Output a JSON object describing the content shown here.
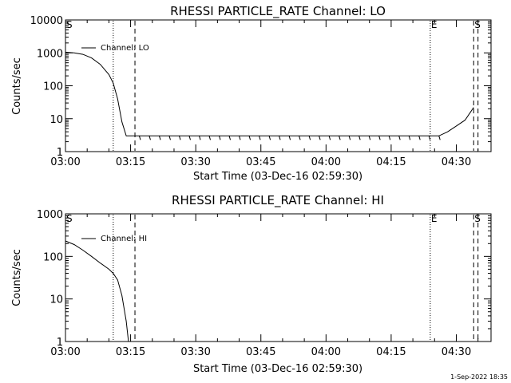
{
  "footer": {
    "timestamp": "1-Sep-2022 18:35"
  },
  "chart_data": [
    {
      "type": "line",
      "title": "RHESSI PARTICLE_RATE Channel: LO",
      "xlabel": "Start Time (03-Dec-16 02:59:30)",
      "ylabel": "Counts/sec",
      "y_scale": "log",
      "xlim": [
        "03:00",
        "04:38"
      ],
      "ylim": [
        1,
        10000
      ],
      "x_ticks": [
        "03:00",
        "03:15",
        "03:30",
        "03:45",
        "04:00",
        "04:15",
        "04:30"
      ],
      "y_ticks": [
        "1",
        "10",
        "100",
        "1000",
        "10000"
      ],
      "legend": {
        "position": "top-left",
        "entries": [
          "Channel: LO"
        ]
      },
      "markers": [
        {
          "label": "S",
          "time": "03:00",
          "style": "text"
        },
        {
          "time": "03:11",
          "style": "dotted"
        },
        {
          "time": "03:16",
          "style": "dashed"
        },
        {
          "label": "E",
          "time": "04:24",
          "style": "dotted"
        },
        {
          "label": "S",
          "time": "04:34",
          "style": "dashed"
        },
        {
          "time": "04:35",
          "style": "dashed"
        }
      ],
      "series": [
        {
          "name": "Channel: LO",
          "points": [
            [
              "03:00",
              1050
            ],
            [
              "03:02",
              1000
            ],
            [
              "03:04",
              900
            ],
            [
              "03:06",
              700
            ],
            [
              "03:08",
              450
            ],
            [
              "03:10",
              220
            ],
            [
              "03:11",
              120
            ],
            [
              "03:12",
              40
            ],
            [
              "03:13",
              8
            ],
            [
              "03:14",
              3
            ],
            [
              "03:16",
              3
            ],
            [
              "03:20",
              3
            ],
            [
              "03:24",
              3
            ],
            [
              "03:30",
              3
            ],
            [
              "03:40",
              3
            ],
            [
              "03:50",
              3
            ],
            [
              "04:00",
              3
            ],
            [
              "04:10",
              3
            ],
            [
              "04:20",
              3
            ],
            [
              "04:26",
              3
            ],
            [
              "04:28",
              4
            ],
            [
              "04:30",
              6
            ],
            [
              "04:32",
              9
            ],
            [
              "04:33",
              14
            ],
            [
              "04:34",
              22
            ]
          ]
        }
      ]
    },
    {
      "type": "line",
      "title": "RHESSI PARTICLE_RATE Channel: HI",
      "xlabel": "Start Time (03-Dec-16 02:59:30)",
      "ylabel": "Counts/sec",
      "y_scale": "log",
      "xlim": [
        "03:00",
        "04:38"
      ],
      "ylim": [
        1,
        1000
      ],
      "x_ticks": [
        "03:00",
        "03:15",
        "03:30",
        "03:45",
        "04:00",
        "04:15",
        "04:30"
      ],
      "y_ticks": [
        "1",
        "10",
        "100",
        "1000"
      ],
      "legend": {
        "position": "top-left",
        "entries": [
          "Channel: HI"
        ]
      },
      "markers": [
        {
          "label": "S",
          "time": "03:00",
          "style": "text"
        },
        {
          "time": "03:11",
          "style": "dotted"
        },
        {
          "time": "03:16",
          "style": "dashed"
        },
        {
          "label": "E",
          "time": "04:24",
          "style": "dotted"
        },
        {
          "label": "S",
          "time": "04:34",
          "style": "dashed"
        },
        {
          "time": "04:35",
          "style": "dashed"
        }
      ],
      "series": [
        {
          "name": "Channel: HI",
          "points": [
            [
              "03:00",
              230
            ],
            [
              "03:02",
              190
            ],
            [
              "03:04",
              140
            ],
            [
              "03:06",
              100
            ],
            [
              "03:08",
              70
            ],
            [
              "03:10",
              50
            ],
            [
              "03:11",
              40
            ],
            [
              "03:12",
              28
            ],
            [
              "03:13",
              12
            ],
            [
              "03:14",
              3
            ],
            [
              "03:14.5",
              1
            ]
          ]
        }
      ]
    }
  ]
}
